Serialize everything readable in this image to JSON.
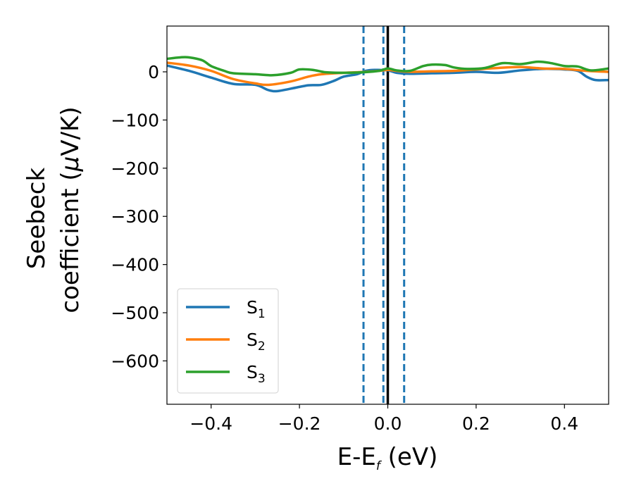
{
  "chart_data": {
    "type": "line",
    "xlabel": {
      "main": "E-E",
      "sub": "f",
      "unit": " (eV)"
    },
    "ylabel": {
      "line1": "Seebeck",
      "line2": "coefficient  (",
      "mu": "μ",
      "unit": "V/K)"
    },
    "xlim": [
      -0.5,
      0.5
    ],
    "ylim": [
      -690,
      95
    ],
    "x_ticks": [
      -0.4,
      -0.2,
      0.0,
      0.2,
      0.4
    ],
    "x_tick_labels": [
      "−0.4",
      "−0.2",
      "0.0",
      "0.2",
      "0.4"
    ],
    "y_ticks": [
      0,
      -100,
      -200,
      -300,
      -400,
      -500,
      -600
    ],
    "y_tick_labels": [
      "0",
      "−100",
      "−200",
      "−300",
      "−400",
      "−500",
      "−600"
    ],
    "grid": false,
    "legend_position": "lower-left",
    "fermi_line": {
      "x": 0.0,
      "color": "#000000"
    },
    "dashed_lines": {
      "x": [
        -0.055,
        -0.01,
        0.037
      ],
      "color": "#1f77b4"
    },
    "series": [
      {
        "name": "S",
        "sub": "1",
        "color": "#1f77b4",
        "x": [
          -0.5,
          -0.45,
          -0.4,
          -0.35,
          -0.3,
          -0.27,
          -0.25,
          -0.22,
          -0.18,
          -0.15,
          -0.12,
          -0.1,
          -0.07,
          -0.05,
          -0.03,
          0.0,
          0.02,
          0.05,
          0.1,
          0.15,
          0.2,
          0.25,
          0.3,
          0.35,
          0.4,
          0.43,
          0.45,
          0.47,
          0.5
        ],
        "y": [
          13,
          2,
          -12,
          -25,
          -27,
          -38,
          -40,
          -35,
          -28,
          -27,
          -18,
          -10,
          -5,
          2,
          4,
          3,
          -2,
          -4,
          -3,
          -2,
          0,
          -2,
          3,
          6,
          5,
          2,
          -10,
          -17,
          -17
        ]
      },
      {
        "name": "S",
        "sub": "2",
        "color": "#ff7f0e",
        "x": [
          -0.5,
          -0.45,
          -0.4,
          -0.35,
          -0.3,
          -0.27,
          -0.22,
          -0.18,
          -0.15,
          -0.1,
          -0.05,
          -0.02,
          0.0,
          0.02,
          0.05,
          0.1,
          0.15,
          0.2,
          0.25,
          0.3,
          0.35,
          0.4,
          0.45,
          0.5
        ],
        "y": [
          19,
          13,
          2,
          -15,
          -24,
          -27,
          -20,
          -10,
          -5,
          -2,
          0,
          2,
          4,
          2,
          0,
          1,
          2,
          5,
          8,
          10,
          7,
          6,
          2,
          0
        ]
      },
      {
        "name": "S",
        "sub": "3",
        "color": "#2ca02c",
        "x": [
          -0.5,
          -0.47,
          -0.45,
          -0.42,
          -0.4,
          -0.37,
          -0.35,
          -0.3,
          -0.26,
          -0.22,
          -0.2,
          -0.17,
          -0.14,
          -0.1,
          -0.06,
          -0.02,
          0.0,
          0.02,
          0.05,
          0.08,
          0.1,
          0.13,
          0.15,
          0.18,
          0.22,
          0.26,
          0.3,
          0.34,
          0.37,
          0.4,
          0.43,
          0.46,
          0.5
        ],
        "y": [
          27,
          30,
          30,
          24,
          12,
          2,
          -3,
          -5,
          -7,
          -2,
          5,
          4,
          -1,
          -2,
          -1,
          2,
          7,
          3,
          2,
          12,
          15,
          14,
          9,
          6,
          8,
          18,
          16,
          21,
          18,
          12,
          11,
          3,
          7
        ]
      }
    ]
  }
}
